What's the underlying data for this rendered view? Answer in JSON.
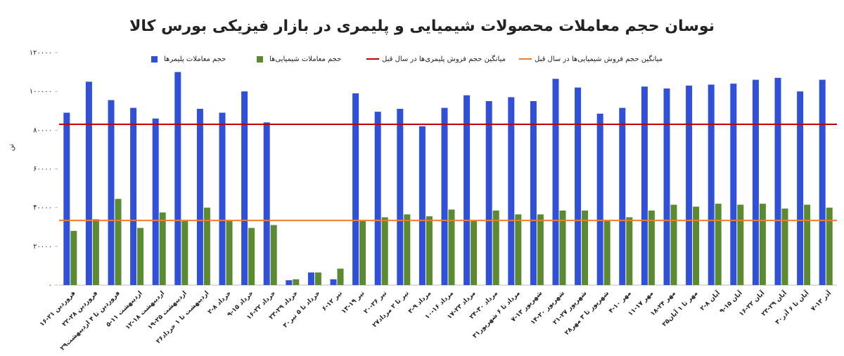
{
  "chart_data": {
    "type": "bar",
    "title": "نوسان حجم معاملات محصولات شیمیایی و پلیمری در بازار فیزیکی بورس کالا",
    "y_label": "تن",
    "categories": [
      "۱۶-۲۱ فروردین",
      "۲۲-۲۸ فروردین",
      "۲۹فروردین تا ۴ اردیبهشت",
      "۵-۱۱ اردیبهشت",
      "۱۲-۱۸ اردیبهشت",
      "۱۹-۲۵ اردیبهشت",
      "۲۶اردیبهشت تا ۱ خرداد",
      "۲-۸ خرداد",
      "۹-۱۵ خرداد",
      "۱۶-۲۲ خرداد",
      "۲۳-۲۹ خرداد",
      "۳۰خرداد تا ۵ تیر",
      "۶-۱۲ تیر",
      "۱۳-۱۹ تیر",
      "۲۰-۲۶ تیر",
      "۲۷تیر تا ۲ مرداد",
      "۳-۹ مرداد",
      "۱۰-۱۶ مرداد",
      "۱۷-۲۳ مرداد",
      "۲۴-۳۰ مرداد",
      "۳۱مرداد تا ۶ شهریور",
      "۷-۱۳ شهریور",
      "۱۴-۲۰ شهریور",
      "۲۱-۲۷ شهریور",
      "۲۸شهریور تا ۳ مهر",
      "۴-۱۰ مهر",
      "۱۱-۱۷ مهر",
      "۱۸-۲۴ مهر",
      "۲۵مهر تا ۱ آبان",
      "۲-۸ آبان",
      "۹-۱۵ آبان",
      "۱۶-۲۲ آبان",
      "۲۳-۲۹ آبان",
      "۳۰آبان تا ۶ آذر",
      "۷-۱۳ آذر"
    ],
    "series": [
      {
        "name": "حجم معاملات پلیمرها",
        "color": "#3050d8",
        "values": [
          89000,
          105000,
          95500,
          91500,
          86000,
          110000,
          91000,
          89000,
          100000,
          84000,
          2500,
          6500,
          3000,
          99000,
          89500,
          91000,
          82000,
          91500,
          98000,
          95000,
          97000,
          95000,
          106500,
          102000,
          88500,
          91500,
          102500,
          101500,
          103000,
          103500,
          104000,
          106000,
          107000,
          100000,
          106000
        ]
      },
      {
        "name": "حجم معاملات شیمیایی‌ها",
        "color": "#5b8a32",
        "values": [
          28000,
          34000,
          44500,
          29500,
          37500,
          33000,
          40000,
          33000,
          29500,
          31000,
          3000,
          6500,
          8500,
          33000,
          35000,
          36500,
          35500,
          39000,
          33000,
          38500,
          36500,
          36500,
          38500,
          38500,
          33000,
          35000,
          38500,
          41500,
          40500,
          42000,
          41500,
          42000,
          39500,
          41500,
          40000
        ]
      }
    ],
    "reference_lines": [
      {
        "name": "میانگین حجم فروش پلیمری‌ها در سال قبل",
        "color": "#c00000",
        "value": 83000
      },
      {
        "name": "میانگین حجم فروش شیمیایی‌ها در سال قبل",
        "color": "#ed7d31",
        "value": 33400
      }
    ],
    "ylim": [
      0,
      120000
    ],
    "yticks": [
      {
        "value": 0,
        "label": "۰"
      },
      {
        "value": 20000,
        "label": "۲۰۰۰۰"
      },
      {
        "value": 40000,
        "label": "۴۰۰۰۰"
      },
      {
        "value": 60000,
        "label": "۶۰۰۰۰"
      },
      {
        "value": 80000,
        "label": "۸۰۰۰۰"
      },
      {
        "value": 100000,
        "label": "۱۰۰۰۰۰"
      },
      {
        "value": 120000,
        "label": "۱۲۰۰۰۰"
      }
    ],
    "grid": false
  }
}
